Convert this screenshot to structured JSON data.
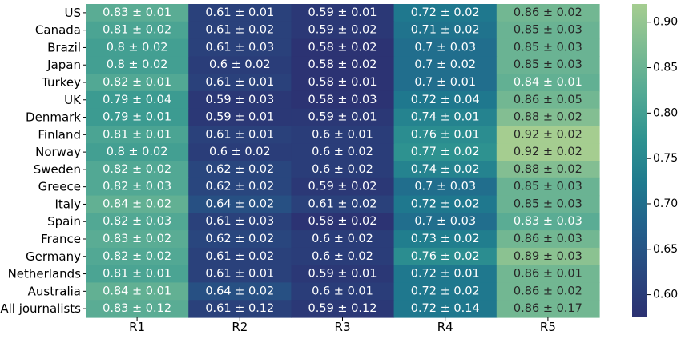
{
  "chart_data": {
    "type": "heatmap",
    "title": "",
    "xlabel": "",
    "ylabel": "",
    "x": [
      "R1",
      "R2",
      "R3",
      "R4",
      "R5"
    ],
    "y": [
      "US",
      "Canada",
      "Brazil",
      "Japan",
      "Turkey",
      "UK",
      "Denmark",
      "Finland",
      "Norway",
      "Sweden",
      "Greece",
      "Italy",
      "Spain",
      "France",
      "Germany",
      "Netherlands",
      "Australia",
      "All journalists"
    ],
    "values": [
      [
        0.83,
        0.61,
        0.59,
        0.72,
        0.86
      ],
      [
        0.81,
        0.61,
        0.59,
        0.71,
        0.85
      ],
      [
        0.8,
        0.61,
        0.58,
        0.7,
        0.85
      ],
      [
        0.8,
        0.6,
        0.58,
        0.7,
        0.85
      ],
      [
        0.82,
        0.61,
        0.58,
        0.7,
        0.84
      ],
      [
        0.79,
        0.59,
        0.58,
        0.72,
        0.86
      ],
      [
        0.79,
        0.59,
        0.59,
        0.74,
        0.88
      ],
      [
        0.81,
        0.61,
        0.6,
        0.76,
        0.92
      ],
      [
        0.8,
        0.6,
        0.6,
        0.77,
        0.92
      ],
      [
        0.82,
        0.62,
        0.6,
        0.74,
        0.88
      ],
      [
        0.82,
        0.62,
        0.59,
        0.7,
        0.85
      ],
      [
        0.84,
        0.64,
        0.61,
        0.72,
        0.85
      ],
      [
        0.82,
        0.61,
        0.58,
        0.7,
        0.83
      ],
      [
        0.83,
        0.62,
        0.6,
        0.73,
        0.86
      ],
      [
        0.82,
        0.61,
        0.6,
        0.76,
        0.89
      ],
      [
        0.81,
        0.61,
        0.59,
        0.72,
        0.86
      ],
      [
        0.84,
        0.64,
        0.6,
        0.72,
        0.86
      ],
      [
        0.83,
        0.61,
        0.59,
        0.72,
        0.86
      ]
    ],
    "annotations": [
      [
        "0.83 ± 0.01",
        "0.61 ± 0.01",
        "0.59 ± 0.01",
        "0.72 ± 0.02",
        "0.86 ± 0.02"
      ],
      [
        "0.81 ± 0.02",
        "0.61 ± 0.02",
        "0.59 ± 0.02",
        "0.71 ± 0.02",
        "0.85 ± 0.03"
      ],
      [
        "0.8 ± 0.02",
        "0.61 ± 0.03",
        "0.58 ± 0.02",
        "0.7 ± 0.03",
        "0.85 ± 0.03"
      ],
      [
        "0.8 ± 0.02",
        "0.6 ± 0.02",
        "0.58 ± 0.02",
        "0.7 ± 0.02",
        "0.85 ± 0.03"
      ],
      [
        "0.82 ± 0.01",
        "0.61 ± 0.01",
        "0.58 ± 0.01",
        "0.7 ± 0.01",
        "0.84 ± 0.01"
      ],
      [
        "0.79 ± 0.04",
        "0.59 ± 0.03",
        "0.58 ± 0.03",
        "0.72 ± 0.04",
        "0.86 ± 0.05"
      ],
      [
        "0.79 ± 0.01",
        "0.59 ± 0.01",
        "0.59 ± 0.01",
        "0.74 ± 0.01",
        "0.88 ± 0.02"
      ],
      [
        "0.81 ± 0.01",
        "0.61 ± 0.01",
        "0.6 ± 0.01",
        "0.76 ± 0.01",
        "0.92 ± 0.02"
      ],
      [
        "0.8 ± 0.02",
        "0.6 ± 0.02",
        "0.6 ± 0.02",
        "0.77 ± 0.02",
        "0.92 ± 0.02"
      ],
      [
        "0.82 ± 0.02",
        "0.62 ± 0.02",
        "0.6 ± 0.02",
        "0.74 ± 0.02",
        "0.88 ± 0.02"
      ],
      [
        "0.82 ± 0.03",
        "0.62 ± 0.02",
        "0.59 ± 0.02",
        "0.7 ± 0.03",
        "0.85 ± 0.03"
      ],
      [
        "0.84 ± 0.02",
        "0.64 ± 0.02",
        "0.61 ± 0.02",
        "0.72 ± 0.02",
        "0.85 ± 0.03"
      ],
      [
        "0.82 ± 0.03",
        "0.61 ± 0.03",
        "0.58 ± 0.02",
        "0.7 ± 0.03",
        "0.83 ± 0.03"
      ],
      [
        "0.83 ± 0.02",
        "0.62 ± 0.02",
        "0.6 ± 0.02",
        "0.73 ± 0.02",
        "0.86 ± 0.03"
      ],
      [
        "0.82 ± 0.02",
        "0.61 ± 0.02",
        "0.6 ± 0.02",
        "0.76 ± 0.02",
        "0.89 ± 0.03"
      ],
      [
        "0.81 ± 0.01",
        "0.61 ± 0.01",
        "0.59 ± 0.01",
        "0.72 ± 0.01",
        "0.86 ± 0.01"
      ],
      [
        "0.84 ± 0.01",
        "0.64 ± 0.02",
        "0.6 ± 0.01",
        "0.72 ± 0.02",
        "0.86 ± 0.02"
      ],
      [
        "0.83 ± 0.12",
        "0.61 ± 0.12",
        "0.59 ± 0.12",
        "0.72 ± 0.14",
        "0.86 ± 0.17"
      ]
    ],
    "colorbar": {
      "vmin": 0.575,
      "vmax": 0.92,
      "ticks": [
        0.6,
        0.65,
        0.7,
        0.75,
        0.8,
        0.85,
        0.9
      ],
      "tick_labels": [
        "0.60",
        "0.65",
        "0.70",
        "0.75",
        "0.80",
        "0.85",
        "0.90"
      ]
    },
    "colormap": "crest",
    "color_stops": [
      "#2c3172",
      "#29487f",
      "#23608b",
      "#1f7a8e",
      "#2f9390",
      "#53a994",
      "#7bbb92",
      "#a5cd90"
    ],
    "grid": false,
    "legend": "colorbar-right"
  }
}
